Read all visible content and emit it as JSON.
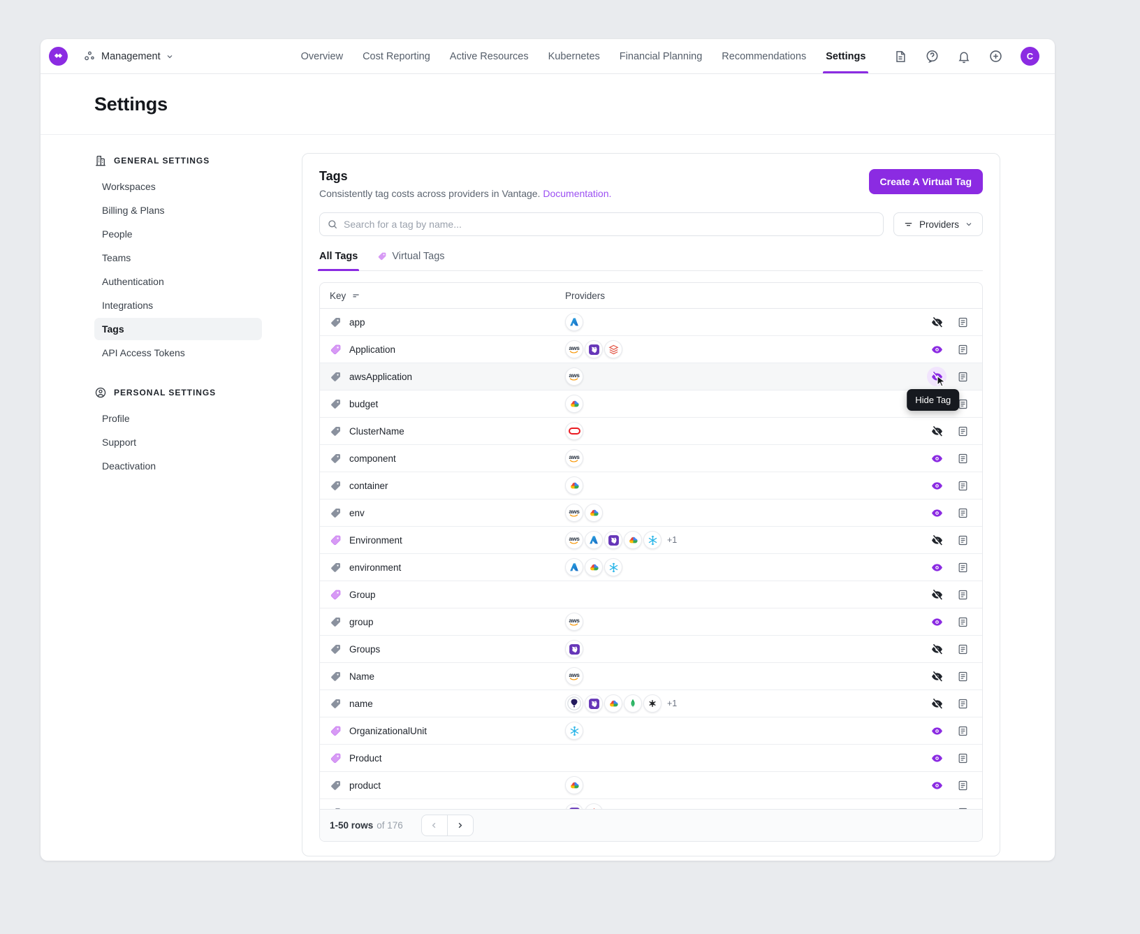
{
  "topbar": {
    "workspace": "Management",
    "nav": [
      {
        "label": "Overview",
        "active": false
      },
      {
        "label": "Cost Reporting",
        "active": false
      },
      {
        "label": "Active Resources",
        "active": false
      },
      {
        "label": "Kubernetes",
        "active": false
      },
      {
        "label": "Financial Planning",
        "active": false
      },
      {
        "label": "Recommendations",
        "active": false
      },
      {
        "label": "Settings",
        "active": true
      }
    ],
    "icons": [
      "changelog-icon",
      "help-icon",
      "bell-icon",
      "add-icon"
    ],
    "avatar": "C"
  },
  "page": {
    "title": "Settings"
  },
  "sidebar": {
    "sections": [
      {
        "title": "General Settings",
        "icon": "building-icon",
        "items": [
          "Workspaces",
          "Billing & Plans",
          "People",
          "Teams",
          "Authentication",
          "Integrations",
          "Tags",
          "API Access Tokens"
        ],
        "active_item": "Tags"
      },
      {
        "title": "Personal Settings",
        "icon": "person-icon",
        "items": [
          "Profile",
          "Support",
          "Deactivation"
        ],
        "active_item": ""
      }
    ]
  },
  "panel": {
    "title": "Tags",
    "description": "Consistently tag costs across providers in Vantage.",
    "doc_link": "Documentation.",
    "create_button": "Create A Virtual Tag",
    "search_placeholder": "Search for a tag by name...",
    "providers_filter": "Providers",
    "tabs": [
      {
        "label": "All Tags",
        "active": true
      },
      {
        "label": "Virtual Tags",
        "active": false
      }
    ],
    "tooltip": "Hide Tag",
    "table": {
      "columns": [
        "Key",
        "Providers"
      ],
      "rows": [
        {
          "key": "app",
          "virtual": false,
          "providers": [
            "azure"
          ],
          "extra": "",
          "visible": false
        },
        {
          "key": "Application",
          "virtual": true,
          "providers": [
            "aws",
            "datadog",
            "layers"
          ],
          "extra": "",
          "visible": true
        },
        {
          "key": "awsApplication",
          "virtual": false,
          "providers": [
            "aws"
          ],
          "extra": "",
          "visible": false,
          "hovered": true
        },
        {
          "key": "budget",
          "virtual": false,
          "providers": [
            "gcp"
          ],
          "extra": "",
          "visible": true
        },
        {
          "key": "ClusterName",
          "virtual": false,
          "providers": [
            "oracle"
          ],
          "extra": "",
          "visible": false
        },
        {
          "key": "component",
          "virtual": false,
          "providers": [
            "aws"
          ],
          "extra": "",
          "visible": true
        },
        {
          "key": "container",
          "virtual": false,
          "providers": [
            "gcp"
          ],
          "extra": "",
          "visible": true
        },
        {
          "key": "env",
          "virtual": false,
          "providers": [
            "aws",
            "gcp"
          ],
          "extra": "",
          "visible": true
        },
        {
          "key": "Environment",
          "virtual": true,
          "providers": [
            "aws",
            "azure",
            "datadog",
            "gcp",
            "snowflake"
          ],
          "extra": "+1",
          "visible": false
        },
        {
          "key": "environment",
          "virtual": false,
          "providers": [
            "azure",
            "gcp",
            "snowflake"
          ],
          "extra": "",
          "visible": true
        },
        {
          "key": "Group",
          "virtual": true,
          "providers": [],
          "extra": "",
          "visible": false
        },
        {
          "key": "group",
          "virtual": false,
          "providers": [
            "aws"
          ],
          "extra": "",
          "visible": true
        },
        {
          "key": "Groups",
          "virtual": false,
          "providers": [
            "datadog"
          ],
          "extra": "",
          "visible": false
        },
        {
          "key": "Name",
          "virtual": false,
          "providers": [
            "aws"
          ],
          "extra": "",
          "visible": false
        },
        {
          "key": "name",
          "virtual": false,
          "providers": [
            "flyio",
            "datadog",
            "gcp",
            "mongodb",
            "openai"
          ],
          "extra": "+1",
          "visible": false
        },
        {
          "key": "OrganizationalUnit",
          "virtual": true,
          "providers": [
            "snowflake"
          ],
          "extra": "",
          "visible": true
        },
        {
          "key": "Product",
          "virtual": true,
          "providers": [],
          "extra": "",
          "visible": true
        },
        {
          "key": "product",
          "virtual": false,
          "providers": [
            "gcp"
          ],
          "extra": "",
          "visible": true
        },
        {
          "key": "Production",
          "virtual": false,
          "providers": [
            "datadog",
            "diamond"
          ],
          "extra": "",
          "visible": true
        }
      ]
    },
    "pagination": {
      "range": "1-50 rows",
      "total": "of 176"
    }
  },
  "colors": {
    "accent": "#8b2be2",
    "link": "#9b4ff2",
    "virtual_tag": "#d79af5",
    "hidden_eye": "#20242b"
  }
}
